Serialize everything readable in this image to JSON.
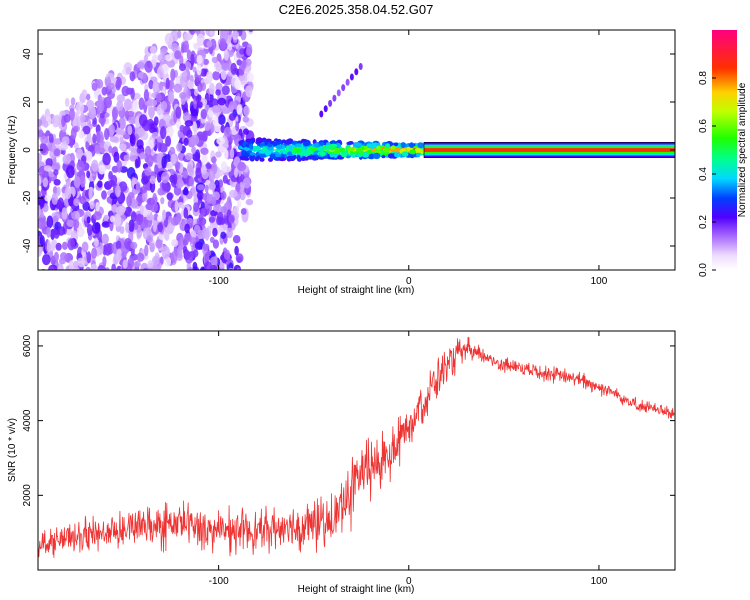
{
  "title": "C2E6.2025.358.04.52.G07",
  "chart_data": [
    {
      "type": "heatmap",
      "xlabel": "Height of straight line (km)",
      "ylabel": "Frequency (Hz)",
      "xlim": [
        -195,
        140
      ],
      "ylim": [
        -50,
        50
      ],
      "xticks": [
        -100,
        0,
        100
      ],
      "yticks": [
        -40,
        -20,
        0,
        20,
        40
      ],
      "colorbar": {
        "label": "Normalized spectral amplitude",
        "range": [
          0,
          1
        ],
        "ticks": [
          0.0,
          0.2,
          0.4,
          0.6,
          0.8
        ],
        "tick_labels": [
          "0.0",
          "0.2",
          "0.4",
          "0.6",
          "0.8"
        ]
      },
      "features": {
        "left_noise_band": "diffuse purple speckle, x from -195 to -85 km, drifting upward in frequency",
        "signal_line": "bright line near 0 Hz from -85 km to 140 km, amplitude increasing toward red (~0.9) for x > 10 km",
        "faint_harmonic": "weak streak from (-45 km, 15 Hz) to (-25 km, 35 Hz)"
      }
    },
    {
      "type": "line",
      "xlabel": "Height of straight line (km)",
      "ylabel": "SNR (10 * v/v)",
      "xlim": [
        -195,
        140
      ],
      "ylim": [
        0,
        6400
      ],
      "xticks": [
        -100,
        0,
        100
      ],
      "yticks": [
        2000,
        4000,
        6000
      ],
      "series": [
        {
          "name": "SNR",
          "color": "#ee3333",
          "x": [
            -195,
            -180,
            -160,
            -140,
            -120,
            -100,
            -80,
            -60,
            -40,
            -32,
            -25,
            -20,
            -10,
            0,
            10,
            20,
            30,
            40,
            50,
            70,
            90,
            110,
            120,
            130,
            140
          ],
          "mean": [
            700,
            850,
            1000,
            1150,
            1250,
            1050,
            1050,
            1150,
            1300,
            2000,
            2600,
            2700,
            3100,
            3900,
            4700,
            5500,
            5900,
            5700,
            5500,
            5300,
            5100,
            4700,
            4400,
            4300,
            4200
          ],
          "spread": [
            500,
            550,
            700,
            800,
            900,
            800,
            800,
            900,
            1000,
            1400,
            1200,
            1200,
            1200,
            1000,
            900,
            700,
            500,
            350,
            300,
            300,
            300,
            300,
            300,
            250,
            250
          ]
        }
      ]
    }
  ]
}
